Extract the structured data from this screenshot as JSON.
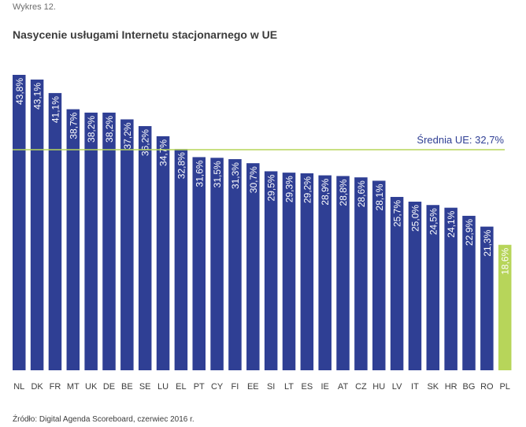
{
  "header": {
    "kicker": "Wykres 12.",
    "title": "Nasycenie usługami Internetu stacjonarnego w UE"
  },
  "footer": {
    "source": "Źródło: Digital Agenda Scoreboard, czerwiec 2016 r."
  },
  "colors": {
    "bar": "#2f3f94",
    "highlight_bar": "#b7d55a",
    "average_line": "#b7d55a",
    "average_text": "#2f3f94",
    "axis_text": "#3c3c3c"
  },
  "chart_data": {
    "type": "bar",
    "categories": [
      "NL",
      "DK",
      "FR",
      "MT",
      "UK",
      "DE",
      "BE",
      "SE",
      "LU",
      "EL",
      "PT",
      "CY",
      "FI",
      "EE",
      "SI",
      "LT",
      "ES",
      "IE",
      "AT",
      "CZ",
      "HU",
      "LV",
      "IT",
      "SK",
      "HR",
      "BG",
      "RO",
      "PL"
    ],
    "values": [
      43.8,
      43.1,
      41.1,
      38.7,
      38.2,
      38.2,
      37.2,
      36.2,
      34.7,
      32.8,
      31.6,
      31.5,
      31.3,
      30.7,
      29.5,
      29.3,
      29.2,
      28.9,
      28.8,
      28.6,
      28.1,
      25.7,
      25.0,
      24.5,
      24.1,
      22.9,
      21.3,
      18.6
    ],
    "data_labels": [
      "43,8%",
      "43,1%",
      "41,1%",
      "38,7%",
      "38,2%",
      "38,2%",
      "37,2%",
      "36,2%",
      "34,7%",
      "32,8%",
      "31,6%",
      "31,5%",
      "31,3%",
      "30,7%",
      "29,5%",
      "29,3%",
      "29,2%",
      "28,9%",
      "28,8%",
      "28,6%",
      "28,1%",
      "25,7%",
      "25,0%",
      "24,5%",
      "24,1%",
      "22,9%",
      "21,3%",
      "18,6%"
    ],
    "highlight_category": "PL",
    "reference_line": {
      "value": 32.7,
      "label": "Średnia UE: 32,7%"
    },
    "ylim": [
      0,
      44
    ],
    "grid": false,
    "legend": "none"
  }
}
